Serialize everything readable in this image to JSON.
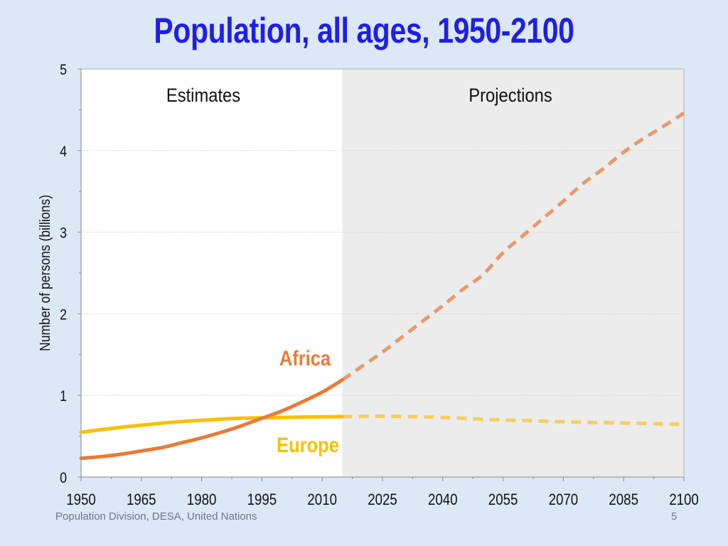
{
  "slide": {
    "title": "Population, all ages, 1950-2100",
    "footer": "Population Division, DESA, United Nations",
    "page_number": "5"
  },
  "chart_data": {
    "type": "line",
    "title": "Population, all ages, 1950-2100",
    "xlabel": "",
    "ylabel": "Number of persons (billions)",
    "xlim": [
      1950,
      2100
    ],
    "ylim": [
      0,
      5
    ],
    "x_ticks": [
      1950,
      1965,
      1980,
      1995,
      2010,
      2025,
      2040,
      2055,
      2070,
      2085,
      2100
    ],
    "y_ticks": [
      0,
      1,
      2,
      3,
      4,
      5
    ],
    "grid": true,
    "regions": [
      {
        "label": "Estimates",
        "from": 1950,
        "to": 2015,
        "fill": "#ffffff"
      },
      {
        "label": "Projections",
        "from": 2015,
        "to": 2100,
        "fill": "#ececec"
      }
    ],
    "split_x": 2015,
    "series": [
      {
        "name": "Africa",
        "color": "#e87b37",
        "projection_color": "#e89a6c",
        "x": [
          1950,
          1955,
          1960,
          1965,
          1970,
          1975,
          1980,
          1985,
          1990,
          1995,
          2000,
          2005,
          2010,
          2015,
          2020,
          2025,
          2030,
          2035,
          2040,
          2045,
          2050,
          2055,
          2060,
          2065,
          2070,
          2075,
          2080,
          2085,
          2090,
          2095,
          2100
        ],
        "values": [
          0.23,
          0.25,
          0.28,
          0.32,
          0.36,
          0.42,
          0.48,
          0.55,
          0.63,
          0.72,
          0.81,
          0.92,
          1.04,
          1.19,
          1.36,
          1.53,
          1.72,
          1.91,
          2.1,
          2.3,
          2.48,
          2.75,
          2.96,
          3.17,
          3.38,
          3.6,
          3.78,
          3.98,
          4.15,
          4.3,
          4.46
        ]
      },
      {
        "name": "Europe",
        "color": "#f8c000",
        "projection_color": "#f3d060",
        "x": [
          1950,
          1955,
          1960,
          1965,
          1970,
          1975,
          1980,
          1985,
          1990,
          1995,
          2000,
          2005,
          2010,
          2015,
          2020,
          2025,
          2030,
          2035,
          2040,
          2045,
          2050,
          2055,
          2060,
          2065,
          2070,
          2075,
          2080,
          2085,
          2090,
          2095,
          2100
        ],
        "values": [
          0.55,
          0.58,
          0.61,
          0.635,
          0.66,
          0.68,
          0.695,
          0.71,
          0.72,
          0.725,
          0.73,
          0.735,
          0.737,
          0.74,
          0.743,
          0.745,
          0.742,
          0.738,
          0.73,
          0.72,
          0.707,
          0.7,
          0.692,
          0.684,
          0.678,
          0.672,
          0.666,
          0.661,
          0.656,
          0.652,
          0.646
        ]
      }
    ]
  }
}
